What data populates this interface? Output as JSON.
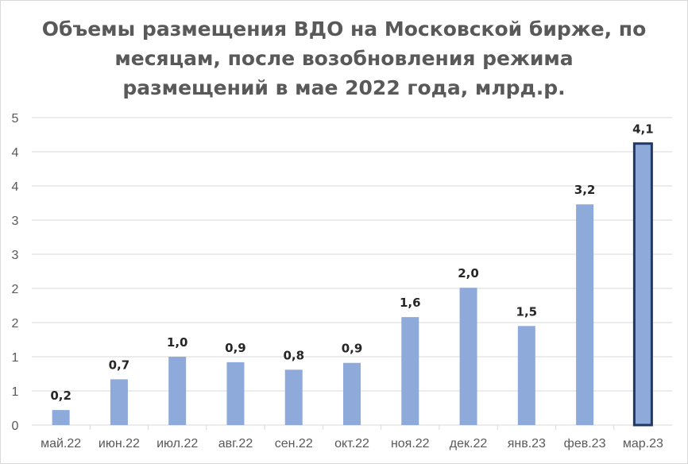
{
  "chart_data": {
    "type": "bar",
    "title_lines": [
      "Объемы размещения ВДО на Московской бирже, по",
      "месяцам, после возобновления режима",
      "размещений в мае 2022 года, млрд.р."
    ],
    "categories": [
      "май.22",
      "июн.22",
      "июл.22",
      "авг.22",
      "сен.22",
      "окт.22",
      "ноя.22",
      "дек.22",
      "янв.23",
      "фев.23",
      "мар.23"
    ],
    "values": [
      0.2,
      0.7,
      1.0,
      0.9,
      0.8,
      0.9,
      1.6,
      2.0,
      1.5,
      3.2,
      4.1
    ],
    "data_labels": [
      "0,2",
      "0,7",
      "1,0",
      "0,9",
      "0,8",
      "0,9",
      "1,6",
      "2,0",
      "1,5",
      "3,2",
      "4,1"
    ],
    "plotted_heights": [
      0.22,
      0.67,
      1.0,
      0.92,
      0.81,
      0.91,
      1.58,
      2.01,
      1.45,
      3.23,
      4.12
    ],
    "y_tick_labels": [
      "0",
      "1",
      "1",
      "2",
      "2",
      "3",
      "3",
      "4",
      "4",
      "5"
    ],
    "ylim": [
      0,
      4.5
    ],
    "grid": true,
    "highlight_index": 10,
    "colors": {
      "bar": "#8eaadb",
      "highlight_fill": "#8eaadb",
      "highlight_border": "#1f3864",
      "grid": "#d9d9d9",
      "axis": "#d9d9d9"
    }
  }
}
